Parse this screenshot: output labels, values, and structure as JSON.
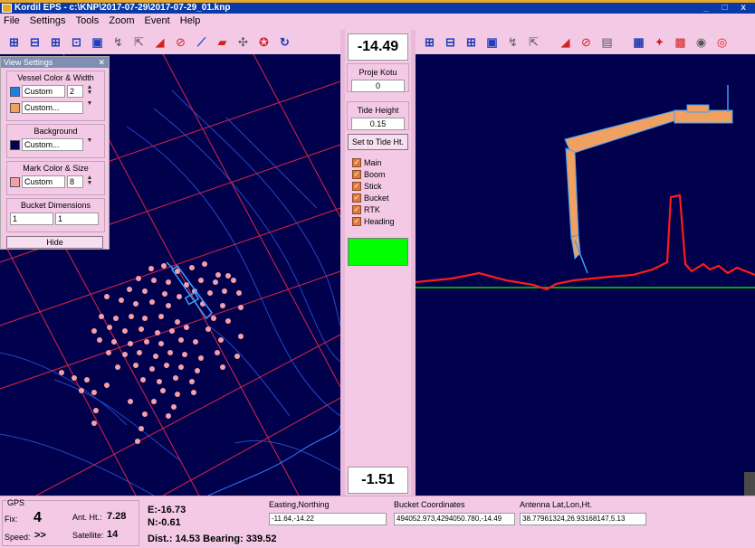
{
  "window": {
    "title": "Kordil EPS - c:\\KNP\\2017-07-29\\2017-07-29_01.knp",
    "controls": "_ □ x"
  },
  "menu": [
    "File",
    "Settings",
    "Tools",
    "Zoom",
    "Event",
    "Help"
  ],
  "toolbar_left_icons": [
    "zoom-in-icon",
    "zoom-out-icon",
    "zoom-window-icon",
    "zoom-fit-icon",
    "zoom-extent-icon",
    "pan-icon",
    "select-arrow-icon",
    "bucket-tool-icon",
    "delete-icon",
    "measure-icon",
    "open-folder-icon",
    "compass-icon",
    "crosshair-icon",
    "rotate-icon"
  ],
  "toolbar_right_icons": [
    "zoom-in-icon",
    "zoom-out-icon",
    "zoom-window-icon",
    "zoom-fit-icon",
    "pan-icon",
    "select-arrow-icon",
    "bucket-tool-icon",
    "delete-icon",
    "chart-icon",
    "grid-icon",
    "excavator-icon",
    "save-icon",
    "record-icon",
    "gps-icon"
  ],
  "center": {
    "top_value": "-14.49",
    "proje_label": "Proje Kotu",
    "proje_value": "0",
    "tide_label": "Tide Height",
    "tide_value": "0.15",
    "set_tide_label": "Set to Tide Ht.",
    "checks": [
      {
        "label": "Main"
      },
      {
        "label": "Boom"
      },
      {
        "label": "Stick"
      },
      {
        "label": "Bucket"
      },
      {
        "label": "RTK"
      },
      {
        "label": "Heading"
      }
    ],
    "bottom_value": "-1.51"
  },
  "view_settings": {
    "title": "View Settings",
    "vessel_legend": "Vessel Color & Width",
    "vessel_color1": "#1f7fe0",
    "vessel_sel1": "Custom",
    "vessel_width": "2",
    "vessel_color2": "#f0a060",
    "vessel_sel2": "Custom...",
    "background_legend": "Background",
    "background_color": "#00004d",
    "background_sel": "Custom...",
    "mark_legend": "Mark Color & Size",
    "mark_color": "#f4a0a8",
    "mark_sel": "Custom",
    "mark_size": "8",
    "bucket_legend": "Bucket Dimensions",
    "bucket_w": "1",
    "bucket_h": "1",
    "hide_label": "Hide"
  },
  "status": {
    "gps_label": "GPS",
    "fix_label": "Fix:",
    "fix_value": "4",
    "ant_label": "Ant. Ht.:",
    "ant_value": "7.28",
    "speed_label": "Speed:",
    "speed_value": ">>",
    "sat_label": "Satellite:",
    "sat_value": "14",
    "e_value": "E:-16.73",
    "n_value": "N:-0.61",
    "dist_value": "Dist.: 14.53 Bearing: 339.52",
    "en_label": "Easting,Northing",
    "en_value": "-11.64,-14.22",
    "bucket_label": "Bucket Coordinates",
    "bucket_value": "494052.973,4294050.780,-14.49",
    "ant_ll_label": "Antenna Lat,Lon,Ht.",
    "ant_ll_value": "38.77961324,26.93168147,5.13"
  },
  "colors": {
    "map_bg": "#00004d",
    "grid_red": "#cc2244",
    "contour_blue": "#2a56d6",
    "profile_red": "#ff1a1a",
    "waterline_green": "#0aa00a",
    "excavator_fill": "#f0a060",
    "excavator_stroke": "#3aa0ff",
    "marks": "#f4a0a8",
    "active_green": "#00ff00"
  }
}
